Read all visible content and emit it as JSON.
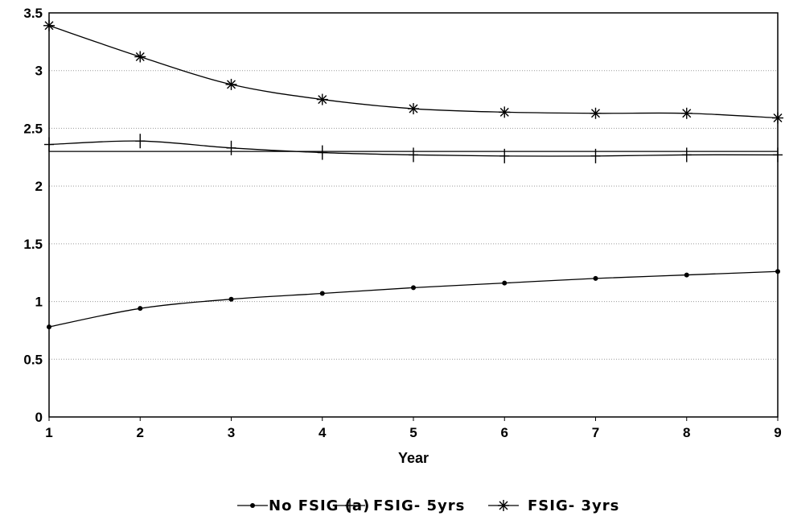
{
  "chart_data": {
    "type": "line",
    "xlabel": "Year",
    "ylabel": "",
    "x": [
      1,
      2,
      3,
      4,
      5,
      6,
      7,
      8,
      9
    ],
    "xlim": [
      1,
      9
    ],
    "ylim": [
      0,
      3.5
    ],
    "yticks": [
      0,
      0.5,
      1,
      1.5,
      2,
      2.5,
      3,
      3.5
    ],
    "yticklabels": [
      "0",
      "0.5",
      "1",
      "1.5",
      "2",
      "2.5",
      "3",
      "3.5"
    ],
    "xticklabels": [
      "1",
      "2",
      "3",
      "4",
      "5",
      "6",
      "7",
      "8",
      "9"
    ],
    "grid": "horizontal dotted",
    "reference_line": 2.3,
    "legend_position": "bottom",
    "series": [
      {
        "name": "No FSIG (a)",
        "marker": "dot",
        "color": "#000000",
        "values": [
          0.78,
          0.94,
          1.02,
          1.07,
          1.12,
          1.16,
          1.2,
          1.23,
          1.26
        ]
      },
      {
        "name": "FSIG- 5yrs",
        "marker": "plus",
        "color": "#000000",
        "values": [
          2.36,
          2.39,
          2.33,
          2.29,
          2.27,
          2.26,
          2.26,
          2.27,
          2.27
        ]
      },
      {
        "name": "FSIG- 3yrs",
        "marker": "asterisk",
        "color": "#000000",
        "values": [
          3.39,
          3.12,
          2.88,
          2.75,
          2.67,
          2.64,
          2.63,
          2.63,
          2.59
        ]
      }
    ]
  }
}
